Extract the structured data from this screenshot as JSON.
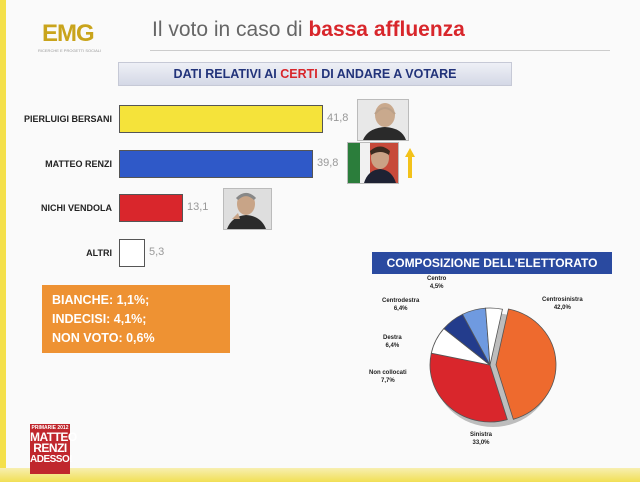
{
  "header": {
    "logo_text": "EMG",
    "logo_subtext": "RICERCHE E PROGETTI SOCIALI",
    "title_prefix": "Il voto in caso di",
    "title_accent": "bassa affluenza"
  },
  "subtitle": {
    "part1": "DATI RELATIVI AI",
    "part_red": "CERTI",
    "part2": "DI ANDARE A VOTARE"
  },
  "notes": {
    "line1": "BIANCHE: 1,1%;",
    "line2": "INDECISI: 4,1%;",
    "line3": "NON VOTO: 0,6%"
  },
  "badge": {
    "line1": "PRIMARIE 2012",
    "line2": "MATTEO",
    "line3": "RENZI",
    "line4": "ADESSO!"
  },
  "colors": {
    "yellow": "#f5e33a",
    "blue": "#2f59c8",
    "red": "#d9262c",
    "white": "#ffffff",
    "orange": "#ee6a2e",
    "dark_blue": "#233c8c",
    "light_blue": "#6f9ae0",
    "grey": "#d9d9d9"
  },
  "chart_data": [
    {
      "type": "bar",
      "orientation": "horizontal",
      "categories": [
        "PIERLUIGI BERSANI",
        "MATTEO RENZI",
        "NICHI VENDOLA",
        "ALTRI"
      ],
      "values": [
        41.8,
        39.8,
        13.1,
        5.3
      ],
      "value_labels": [
        "41,8",
        "39,8",
        "13,1",
        "5,3"
      ],
      "colors": [
        "#f5e33a",
        "#2f59c8",
        "#d9262c",
        "#ffffff"
      ]
    },
    {
      "type": "pie",
      "title": "COMPOSIZIONE DELL'ELETTORATO",
      "slices": [
        {
          "label": "Centrosinistra",
          "value": 42.0,
          "value_label": "42,0%",
          "color": "#ee6a2e"
        },
        {
          "label": "Sinistra",
          "value": 33.0,
          "value_label": "33,0%",
          "color": "#d9262c"
        },
        {
          "label": "Non collocati",
          "value": 7.7,
          "value_label": "7,7%",
          "color": "#ffffff"
        },
        {
          "label": "Destra",
          "value": 6.4,
          "value_label": "6,4%",
          "color": "#233c8c"
        },
        {
          "label": "Centrodestra",
          "value": 6.4,
          "value_label": "6,4%",
          "color": "#6f9ae0"
        },
        {
          "label": "Centro",
          "value": 4.5,
          "value_label": "4,5%",
          "color": "#ffffff"
        }
      ]
    }
  ]
}
